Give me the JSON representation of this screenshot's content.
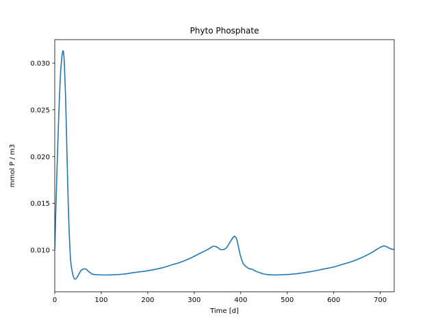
{
  "chart_data": {
    "type": "line",
    "title": "Phyto Phosphate",
    "xlabel": "Time [d]",
    "ylabel": "mmol P / m3",
    "xlim": [
      0,
      730
    ],
    "ylim": [
      0.00555,
      0.0325
    ],
    "grid": false,
    "x_ticks": [
      0,
      100,
      200,
      300,
      400,
      500,
      600,
      700
    ],
    "y_ticks": [
      0.01,
      0.015,
      0.02,
      0.025,
      0.03
    ],
    "x_tick_labels": [
      "0",
      "100",
      "200",
      "300",
      "400",
      "500",
      "600",
      "700"
    ],
    "y_tick_labels": [
      "0.010",
      "0.015",
      "0.020",
      "0.025",
      "0.030"
    ],
    "series": [
      {
        "name": "",
        "color": "#1f77b4",
        "x": [
          0,
          3,
          6,
          9,
          12,
          15,
          17,
          18,
          19,
          20,
          21,
          23,
          25,
          27,
          29,
          31,
          33,
          35,
          38,
          41,
          44,
          48,
          52,
          56,
          60,
          64,
          68,
          72,
          76,
          80,
          85,
          90,
          100,
          110,
          120,
          130,
          150,
          170,
          200,
          230,
          250,
          270,
          290,
          310,
          330,
          340,
          345,
          350,
          355,
          360,
          365,
          370,
          375,
          380,
          385,
          388,
          391,
          394,
          397,
          400,
          405,
          410,
          415,
          420,
          425,
          430,
          440,
          450,
          460,
          470,
          480,
          490,
          500,
          520,
          550,
          580,
          600,
          620,
          640,
          660,
          680,
          690,
          700,
          705,
          708,
          712,
          716,
          720,
          725,
          730
        ],
        "y": [
          0.0101,
          0.0155,
          0.0205,
          0.025,
          0.0285,
          0.0305,
          0.0312,
          0.0313,
          0.0311,
          0.0305,
          0.0295,
          0.0268,
          0.023,
          0.0188,
          0.015,
          0.012,
          0.0098,
          0.0085,
          0.0076,
          0.00705,
          0.0069,
          0.0071,
          0.00745,
          0.0078,
          0.00795,
          0.008,
          0.00795,
          0.00775,
          0.0076,
          0.00745,
          0.0074,
          0.00738,
          0.00735,
          0.00735,
          0.00735,
          0.00738,
          0.00745,
          0.0076,
          0.0078,
          0.0081,
          0.0084,
          0.0087,
          0.0091,
          0.0096,
          0.0101,
          0.0104,
          0.0104,
          0.0103,
          0.0101,
          0.01005,
          0.0101,
          0.0103,
          0.0107,
          0.0111,
          0.01145,
          0.01145,
          0.0112,
          0.0106,
          0.0099,
          0.0093,
          0.0086,
          0.0083,
          0.0081,
          0.008,
          0.00795,
          0.0078,
          0.0076,
          0.00745,
          0.00738,
          0.00735,
          0.00735,
          0.00738,
          0.0074,
          0.00748,
          0.0077,
          0.008,
          0.0082,
          0.0085,
          0.0088,
          0.0092,
          0.0097,
          0.01,
          0.0103,
          0.0104,
          0.01045,
          0.0104,
          0.0103,
          0.0102,
          0.0101,
          0.0101
        ]
      }
    ]
  }
}
